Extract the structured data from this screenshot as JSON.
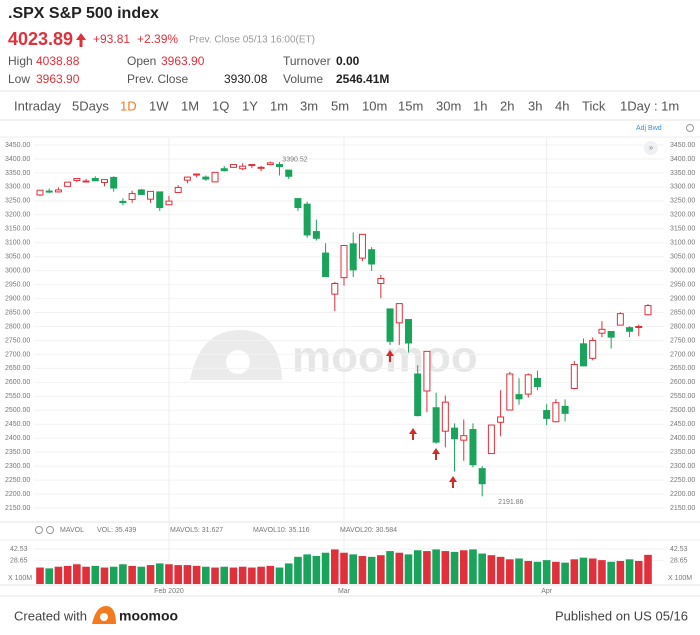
{
  "header": {
    "symbol": ".SPX S&P 500 index",
    "price": "4023.89",
    "change": "+93.81",
    "change_pct": "+2.39%",
    "prev_close_time": "Prev. Close 05/13 16:00(ET)",
    "stats": [
      {
        "label": "High",
        "value": "4038.88"
      },
      {
        "label": "Open",
        "value": "3963.90"
      },
      {
        "label": "Turnover",
        "value": "0.00"
      },
      {
        "label": "Low",
        "value": "3963.90"
      },
      {
        "label": "Prev. Close",
        "value": "3930.08"
      },
      {
        "label": "Volume",
        "value": "2546.41M"
      }
    ]
  },
  "toolbar": {
    "tabs": [
      "Intraday",
      "5Days",
      "1D",
      "1W",
      "1M",
      "1Q",
      "1Y",
      "1m",
      "3m",
      "5m",
      "10m",
      "15m",
      "30m",
      "1h",
      "2h",
      "3h",
      "4h",
      "Tick",
      "1Day : 1m"
    ],
    "active": "1D",
    "adjust": "Adj Bwd"
  },
  "watermark": "moomoo",
  "chart_data": [
    {
      "type": "candlestick",
      "up_color": "#e0303b",
      "down_color": "#1aa35a",
      "annotate_extremes": true,
      "grid": true,
      "categories": [
        null,
        null,
        null,
        null,
        null,
        null,
        null,
        null,
        null,
        null,
        null,
        null,
        null,
        null,
        "Feb 2020",
        null,
        null,
        null,
        null,
        null,
        null,
        null,
        null,
        null,
        null,
        null,
        null,
        null,
        null,
        null,
        null,
        null,
        null,
        "Mar",
        null,
        null,
        null,
        null,
        null,
        null,
        null,
        null,
        null,
        null,
        null,
        null,
        null,
        null,
        null,
        null,
        null,
        null,
        null,
        null,
        null,
        "Apr",
        null,
        null,
        null,
        null,
        null,
        null,
        null,
        null,
        null,
        null,
        null
      ],
      "open": [
        3271,
        3285,
        3282,
        3302,
        3323,
        3321,
        3330,
        3316,
        3334,
        3248,
        3255,
        3289,
        3256,
        3282,
        3236,
        3280,
        3324,
        3344,
        3335,
        3318,
        3365,
        3370,
        3365,
        3378,
        3369,
        3380,
        3380,
        3360,
        3258,
        3238,
        3140,
        3063,
        2916,
        2975,
        3096,
        3045,
        3075,
        2954,
        2863,
        2813,
        2825,
        2630,
        2569,
        2509,
        2425,
        2436,
        2393,
        2431,
        2291,
        2345,
        2457,
        2501,
        2556,
        2558,
        2614,
        2499,
        2459,
        2514,
        2578,
        2738,
        2686,
        2776,
        2782,
        2805,
        2796,
        2799,
        2842
      ],
      "high": [
        3288,
        3294,
        3298,
        3317,
        3330,
        3329,
        3338,
        3327,
        3338,
        3259,
        3286,
        3293,
        3285,
        3282,
        3268,
        3306,
        3337,
        3347,
        3341,
        3352,
        3375,
        3381,
        3385,
        3381,
        3375,
        3390.52,
        3389,
        3360,
        3259,
        3247,
        3183,
        3098,
        2960,
        3090,
        3137,
        3130,
        3084,
        2985,
        2863,
        2883,
        2825,
        2661,
        2711,
        2563,
        2553,
        2453,
        2467,
        2453,
        2300,
        2449,
        2572,
        2638,
        2615,
        2632,
        2642,
        2522,
        2540,
        2539,
        2677,
        2757,
        2761,
        2819,
        2782,
        2851,
        2801,
        2807,
        2880
      ],
      "low": [
        3268,
        3278,
        3280,
        3302,
        3317,
        3316,
        3320,
        3302,
        3283,
        3234,
        3243,
        3271,
        3243,
        3214,
        3236,
        3280,
        3313,
        3334,
        3322,
        3317,
        3355,
        3369,
        3360,
        3367,
        3356,
        3378,
        3341,
        3328,
        3214,
        3118,
        3108,
        2977,
        2855,
        2946,
        2977,
        3034,
        2999,
        2901,
        2734,
        2734,
        2707,
        2478,
        2493,
        2380,
        2367,
        2281,
        2319,
        2295,
        2191.86,
        2345,
        2407,
        2500,
        2520,
        2545,
        2572,
        2447,
        2456,
        2460,
        2575,
        2657,
        2679,
        2762,
        2721,
        2805,
        2762,
        2765,
        2842
      ],
      "close": [
        3288,
        3283,
        3289,
        3317,
        3330,
        3321,
        3322,
        3326,
        3296,
        3244,
        3276,
        3273,
        3284,
        3226,
        3249,
        3298,
        3335,
        3346,
        3328,
        3352,
        3358,
        3380,
        3374,
        3380,
        3370,
        3386,
        3373,
        3338,
        3226,
        3128,
        3116,
        2979,
        2954,
        3090,
        3003,
        3130,
        3024,
        2972,
        2747,
        2882,
        2741,
        2481,
        2711,
        2386,
        2529,
        2398,
        2409,
        2305,
        2237,
        2447,
        2476,
        2630,
        2541,
        2627,
        2585,
        2471,
        2527,
        2489,
        2664,
        2659,
        2750,
        2790,
        2762,
        2846,
        2783,
        2800,
        2875
      ],
      "ylim": [
        2150,
        3450
      ],
      "yticks": [
        {
          "value": 3450,
          "label": "3450.00"
        },
        {
          "value": 3400,
          "label": "3400.00"
        },
        {
          "value": 3350,
          "label": "3350.00"
        },
        {
          "value": 3300,
          "label": "3300.00"
        },
        {
          "value": 3250,
          "label": "3250.00"
        },
        {
          "value": 3200,
          "label": "3200.00"
        },
        {
          "value": 3150,
          "label": "3150.00"
        },
        {
          "value": 3100,
          "label": "3100.00"
        },
        {
          "value": 3050,
          "label": "3050.00"
        },
        {
          "value": 3000,
          "label": "3000.00"
        },
        {
          "value": 2950,
          "label": "2950.00"
        },
        {
          "value": 2900,
          "label": "2900.00"
        },
        {
          "value": 2850,
          "label": "2850.00"
        },
        {
          "value": 2800,
          "label": "2800.00"
        },
        {
          "value": 2750,
          "label": "2750.00"
        },
        {
          "value": 2700,
          "label": "2700.00"
        },
        {
          "value": 2650,
          "label": "2650.00"
        },
        {
          "value": 2600,
          "label": "2600.00"
        },
        {
          "value": 2550,
          "label": "2550.00"
        },
        {
          "value": 2500,
          "label": "2500.00"
        },
        {
          "value": 2450,
          "label": "2450.00"
        },
        {
          "value": 2400,
          "label": "2400.00"
        },
        {
          "value": 2350,
          "label": "2350.00"
        },
        {
          "value": 2300,
          "label": "2300.00"
        },
        {
          "value": 2250,
          "label": "2250.00"
        },
        {
          "value": 2200,
          "label": "2200.00"
        },
        {
          "value": 2150,
          "label": "2150.00"
        }
      ]
    },
    {
      "type": "volume",
      "title": "MAVOL",
      "indicators": [
        {
          "text": "VOL: 35.439",
          "color": "#e0303b"
        },
        {
          "text": "MAVOL5: 31.627",
          "color": "#f0a030"
        },
        {
          "text": "MAVOL10: 35.116",
          "color": "#3a8fd8"
        },
        {
          "text": "MAVOL20: 30.584",
          "color": "#d050c0"
        }
      ],
      "unit_label": "X 100M",
      "values": [
        20,
        19,
        21,
        22,
        24,
        21,
        22,
        20,
        21,
        24,
        22,
        21,
        23,
        25,
        24,
        23,
        23,
        22,
        21,
        20,
        21,
        20,
        21,
        20,
        21,
        22,
        20,
        25,
        33,
        36,
        34,
        38,
        42,
        38,
        36,
        34,
        33,
        35,
        40,
        38,
        36,
        41,
        40,
        42,
        40,
        39,
        41,
        42,
        37,
        35,
        33,
        30,
        31,
        28,
        27,
        29,
        27,
        26,
        30,
        32,
        31,
        29,
        27,
        28,
        30,
        28,
        35.439
      ],
      "ylim": [
        0,
        42.53
      ],
      "yticks": [
        42.53,
        28.65
      ]
    }
  ],
  "footer": {
    "created": "Created with",
    "brand": "moomoo",
    "published": "Published on US 05/16"
  }
}
